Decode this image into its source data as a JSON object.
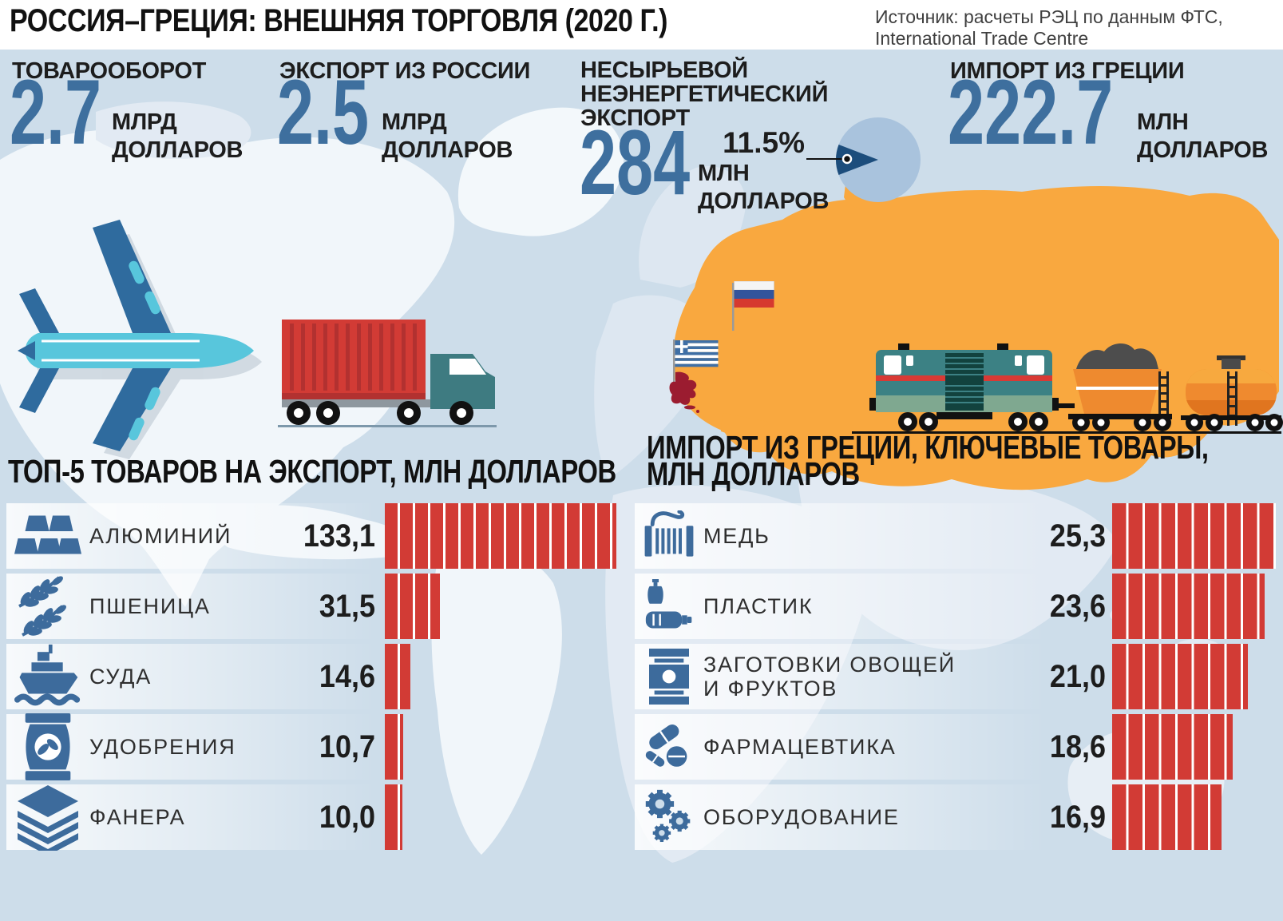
{
  "title": "РОССИЯ–ГРЕЦИЯ: ВНЕШНЯЯ ТОРГОВЛЯ (2020 Г.)",
  "source": {
    "line1": "Источник: расчеты РЭЦ по данным ФТС,",
    "line2": "International Trade Centre"
  },
  "stats": [
    {
      "id": "turnover",
      "label": "ТОВАРООБОРОТ",
      "value": "2.7",
      "unit_line1": "МЛРД",
      "unit_line2": "ДОЛЛАРОВ"
    },
    {
      "id": "export-from-russia",
      "label": "ЭКСПОРТ ИЗ РОССИИ",
      "value": "2.5",
      "unit_line1": "МЛРД",
      "unit_line2": "ДОЛЛАРОВ"
    },
    {
      "id": "non-commodity-non-energy-export",
      "label_line1": "НЕСЫРЬЕВОЙ",
      "label_line2": "НЕЭНЕРГЕТИЧЕСКИЙ",
      "label_line3": "ЭКСПОРТ",
      "value": "284",
      "unit_line1": "МЛН",
      "unit_line2": "ДОЛЛАРОВ",
      "share_label": "11.5%"
    },
    {
      "id": "import-from-greece",
      "label": "ИМПОРТ ИЗ ГРЕЦИИ",
      "value": "222.7",
      "unit_line1": "МЛН",
      "unit_line2": "ДОЛЛАРОВ"
    }
  ],
  "chart_data": [
    {
      "type": "bar",
      "id": "top5-export",
      "title": "ТОП-5 ТОВАРОВ НА ЭКСПОРТ, МЛН ДОЛЛАРОВ",
      "orientation": "horizontal-segmented",
      "unit": "млн долларов",
      "categories": [
        "АЛЮМИНИЙ",
        "ПШЕНИЦА",
        "СУДА",
        "УДОБРЕНИЯ",
        "ФАНЕРА"
      ],
      "values": [
        133.1,
        31.5,
        14.6,
        10.7,
        10.0
      ],
      "value_labels": [
        "133,1",
        "31,5",
        "14,6",
        "10,7",
        "10,0"
      ],
      "icons": [
        "aluminum-ingots-icon",
        "wheat-icon",
        "ship-icon",
        "fertilizer-icon",
        "plywood-icon"
      ],
      "bar_color": "#d23b35",
      "xlim": [
        0,
        135
      ]
    },
    {
      "type": "bar",
      "id": "import-key-goods",
      "title": "ИМПОРТ ИЗ ГРЕЦИИ, КЛЮЧЕВЫЕ ТОВАРЫ, МЛН ДОЛЛАРОВ",
      "title_line1": "ИМПОРТ ИЗ ГРЕЦИИ, КЛЮЧЕВЫЕ ТОВАРЫ,",
      "title_line2": "МЛН ДОЛЛАРОВ",
      "orientation": "horizontal-segmented",
      "unit": "млн долларов",
      "categories": [
        "МЕДЬ",
        "ПЛАСТИК",
        "ЗАГОТОВКИ ОВОЩЕЙ И ФРУКТОВ",
        "ФАРМАЦЕВТИКА",
        "ОБОРУДОВАНИЕ"
      ],
      "category_lines": [
        [
          "МЕДЬ"
        ],
        [
          "ПЛАСТИК"
        ],
        [
          "ЗАГОТОВКИ ОВОЩЕЙ",
          "И ФРУКТОВ"
        ],
        [
          "ФАРМАЦЕВТИКА"
        ],
        [
          "ОБОРУДОВАНИЕ"
        ]
      ],
      "values": [
        25.3,
        23.6,
        21.0,
        18.6,
        16.9
      ],
      "value_labels": [
        "25,3",
        "23,6",
        "21,0",
        "18,6",
        "16,9"
      ],
      "icons": [
        "copper-coil-icon",
        "plastic-bottles-icon",
        "canned-goods-icon",
        "pharma-pills-icon",
        "gears-icon"
      ],
      "bar_color": "#d23b35",
      "xlim": [
        0,
        26
      ]
    },
    {
      "type": "pie",
      "id": "nne-export-share",
      "labels": [
        "доля несырьевого неэнергетического экспорта",
        "прочее"
      ],
      "values": [
        11.5,
        88.5
      ],
      "value_label": "11.5%",
      "colors": [
        "#1c4d7c",
        "#a9c3dd"
      ],
      "legend_position": "none"
    }
  ],
  "colors": {
    "background": "#cdddea",
    "accent_blue": "#3e6f9e",
    "icon_blue": "#3d6b9c",
    "bar_red": "#d23b35",
    "russia_orange": "#f9a83f",
    "greece_red": "#9b1c30",
    "pie_light": "#a9c3dd",
    "pie_dark": "#1c4d7c",
    "text_dark": "#1d1d1d"
  }
}
